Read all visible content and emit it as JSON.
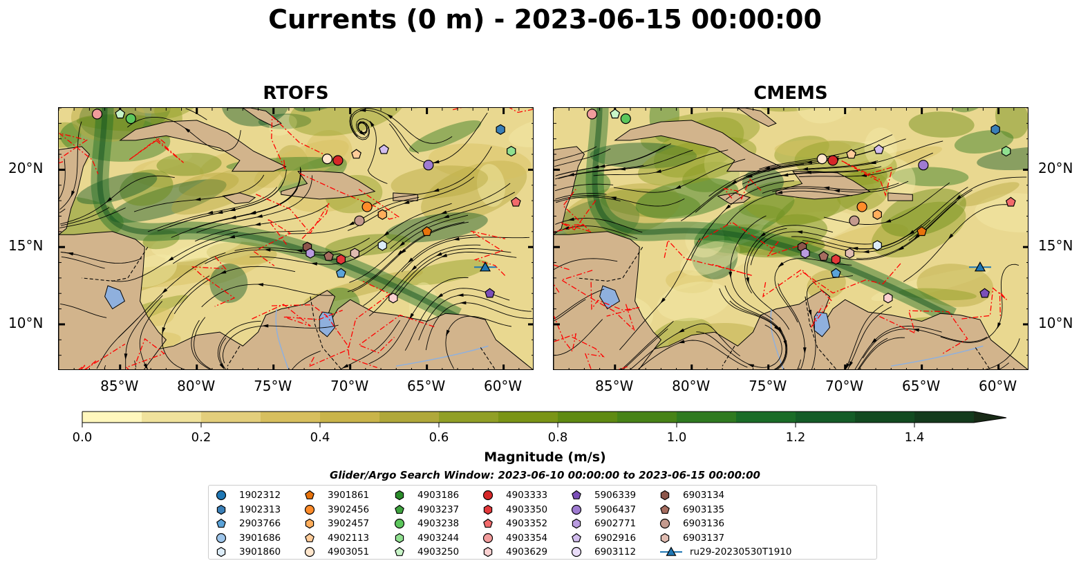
{
  "title": "Currents (0 m) - 2023-06-15 00:00:00",
  "panels": [
    {
      "title": "RTOFS",
      "seed": 11
    },
    {
      "title": "CMEMS",
      "seed": 37
    }
  ],
  "axes": {
    "lon_range": [
      -89,
      -58
    ],
    "lat_range": [
      7,
      24
    ],
    "x_ticks": [
      {
        "value": -85,
        "label": "85°W"
      },
      {
        "value": -80,
        "label": "80°W"
      },
      {
        "value": -75,
        "label": "75°W"
      },
      {
        "value": -70,
        "label": "70°W"
      },
      {
        "value": -65,
        "label": "65°W"
      },
      {
        "value": -60,
        "label": "60°W"
      }
    ],
    "y_ticks": [
      {
        "value": 20,
        "label": "20°N"
      },
      {
        "value": 15,
        "label": "15°N"
      },
      {
        "value": 10,
        "label": "10°N"
      }
    ]
  },
  "colorbar": {
    "label": "Magnitude (m/s)",
    "min": 0.0,
    "max": 1.5,
    "extend": "max",
    "ticks": [
      "0.0",
      "0.2",
      "0.4",
      "0.6",
      "0.8",
      "1.0",
      "1.2",
      "1.4"
    ],
    "colors": [
      "#fff7bd",
      "#f0e29c",
      "#e3ce7c",
      "#d7bf5e",
      "#c9b44a",
      "#b0a83a",
      "#919f26",
      "#7a9416",
      "#5f8a12",
      "#478317",
      "#2f7a20",
      "#1a6c27",
      "#145c27",
      "#124a20",
      "#133a1c",
      "#182a16"
    ]
  },
  "colors": {
    "land": "#d2b48c",
    "lakes": "#8fb0dd",
    "eez_lines": "#ff0000"
  },
  "search_window": "Glider/Argo Search Window: 2023-06-10 00:00:00 to 2023-06-15 00:00:00",
  "legend": [
    {
      "label": "1902312",
      "marker": "circle",
      "color": "#1f77b4"
    },
    {
      "label": "1902313",
      "marker": "hexagon",
      "color": "#3a7fb7"
    },
    {
      "label": "2903766",
      "marker": "pentagon",
      "color": "#5ba3d9"
    },
    {
      "label": "3901686",
      "marker": "circle",
      "color": "#9ec5ea"
    },
    {
      "label": "3901860",
      "marker": "hexagon",
      "color": "#dcecf8"
    },
    {
      "label": "3901861",
      "marker": "pentagon",
      "color": "#e8730c"
    },
    {
      "label": "3902456",
      "marker": "circle",
      "color": "#ff8c2a"
    },
    {
      "label": "3902457",
      "marker": "hexagon",
      "color": "#ffae5c"
    },
    {
      "label": "4902113",
      "marker": "pentagon",
      "color": "#ffcc99"
    },
    {
      "label": "4903051",
      "marker": "circle",
      "color": "#ffe6cc"
    },
    {
      "label": "4903186",
      "marker": "hexagon",
      "color": "#2a8c2a"
    },
    {
      "label": "4903237",
      "marker": "pentagon",
      "color": "#3ea33e"
    },
    {
      "label": "4903238",
      "marker": "circle",
      "color": "#5cc65c"
    },
    {
      "label": "4903244",
      "marker": "hexagon",
      "color": "#90e090"
    },
    {
      "label": "4903250",
      "marker": "pentagon",
      "color": "#c8f5c8"
    },
    {
      "label": "4903333",
      "marker": "circle",
      "color": "#d62728"
    },
    {
      "label": "4903350",
      "marker": "hexagon",
      "color": "#e3383a"
    },
    {
      "label": "4903352",
      "marker": "pentagon",
      "color": "#f26a6b"
    },
    {
      "label": "4903354",
      "marker": "circle",
      "color": "#f29c9c"
    },
    {
      "label": "4903629",
      "marker": "hexagon",
      "color": "#fbd0d0"
    },
    {
      "label": "5906339",
      "marker": "pentagon",
      "color": "#7b4fb8"
    },
    {
      "label": "5906437",
      "marker": "circle",
      "color": "#9f7bd1"
    },
    {
      "label": "6902771",
      "marker": "hexagon",
      "color": "#b99be0"
    },
    {
      "label": "6902916",
      "marker": "pentagon",
      "color": "#d2bdee"
    },
    {
      "label": "6903112",
      "marker": "circle",
      "color": "#e9dcf8"
    },
    {
      "label": "6903134",
      "marker": "hexagon",
      "color": "#8c564b"
    },
    {
      "label": "6903135",
      "marker": "pentagon",
      "color": "#a66d60"
    },
    {
      "label": "6903136",
      "marker": "circle",
      "color": "#c49a8e"
    },
    {
      "label": "6903137",
      "marker": "hexagon",
      "color": "#e0bcb1"
    },
    {
      "label": "ru29-20230530T1910",
      "marker": "triangle-line",
      "color": "#1f77b4"
    }
  ],
  "floats": [
    {
      "id": "4903354",
      "lon": -86.5,
      "lat": 23.6,
      "marker": "circle",
      "color": "#f29c9c"
    },
    {
      "id": "4903250",
      "lon": -85.0,
      "lat": 23.6,
      "marker": "pentagon",
      "color": "#c8f5c8"
    },
    {
      "id": "4903238",
      "lon": -84.3,
      "lat": 23.3,
      "marker": "circle",
      "color": "#5cc65c"
    },
    {
      "id": "4903051",
      "lon": -71.5,
      "lat": 20.7,
      "marker": "circle",
      "color": "#ffe6cc"
    },
    {
      "id": "4903333",
      "lon": -70.8,
      "lat": 20.6,
      "marker": "circle",
      "color": "#d62728"
    },
    {
      "id": "4902113",
      "lon": -69.6,
      "lat": 21.0,
      "marker": "pentagon",
      "color": "#ffcc99"
    },
    {
      "id": "6902916",
      "lon": -67.8,
      "lat": 21.3,
      "marker": "pentagon",
      "color": "#d2bdee"
    },
    {
      "id": "5906437",
      "lon": -64.9,
      "lat": 20.3,
      "marker": "circle",
      "color": "#9f7bd1"
    },
    {
      "id": "1902313",
      "lon": -60.2,
      "lat": 22.6,
      "marker": "hexagon",
      "color": "#3a7fb7"
    },
    {
      "id": "4903244",
      "lon": -59.5,
      "lat": 21.2,
      "marker": "hexagon",
      "color": "#90e090"
    },
    {
      "id": "4903352",
      "lon": -59.2,
      "lat": 17.9,
      "marker": "pentagon",
      "color": "#f26a6b"
    },
    {
      "id": "3902456",
      "lon": -68.9,
      "lat": 17.6,
      "marker": "circle",
      "color": "#ff8c2a"
    },
    {
      "id": "3902457",
      "lon": -67.9,
      "lat": 17.1,
      "marker": "hexagon",
      "color": "#ffae5c"
    },
    {
      "id": "6903136",
      "lon": -69.4,
      "lat": 16.7,
      "marker": "circle",
      "color": "#c49a8e"
    },
    {
      "id": "3901861",
      "lon": -65.0,
      "lat": 16.0,
      "marker": "pentagon",
      "color": "#e8730c"
    },
    {
      "id": "3901860",
      "lon": -67.9,
      "lat": 15.1,
      "marker": "hexagon",
      "color": "#dcecf8"
    },
    {
      "id": "6903134",
      "lon": -72.8,
      "lat": 15.0,
      "marker": "hexagon",
      "color": "#8c564b"
    },
    {
      "id": "6902771",
      "lon": -72.6,
      "lat": 14.6,
      "marker": "hexagon",
      "color": "#b99be0"
    },
    {
      "id": "6903135",
      "lon": -71.4,
      "lat": 14.4,
      "marker": "pentagon",
      "color": "#a66d60"
    },
    {
      "id": "4903350",
      "lon": -70.6,
      "lat": 14.2,
      "marker": "hexagon",
      "color": "#e3383a"
    },
    {
      "id": "6903137",
      "lon": -69.7,
      "lat": 14.6,
      "marker": "hexagon",
      "color": "#e0bcb1"
    },
    {
      "id": "2903766",
      "lon": -70.6,
      "lat": 13.3,
      "marker": "pentagon",
      "color": "#5ba3d9"
    },
    {
      "id": "4903629",
      "lon": -67.2,
      "lat": 11.7,
      "marker": "hexagon",
      "color": "#fbd0d0"
    },
    {
      "id": "5906339",
      "lon": -60.9,
      "lat": 12.0,
      "marker": "pentagon",
      "color": "#7b4fb8"
    },
    {
      "id": "ru29-20230530T1910",
      "lon": -61.2,
      "lat": 13.7,
      "marker": "triangle-line",
      "color": "#1f77b4"
    }
  ]
}
